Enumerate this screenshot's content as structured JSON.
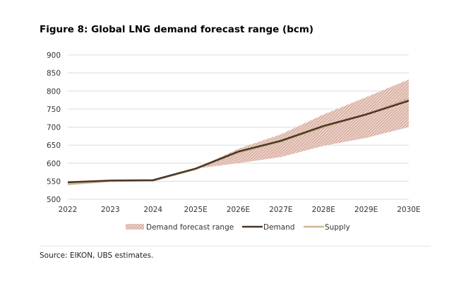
{
  "chart_data": {
    "type": "line",
    "title": "Figure 8: Global LNG demand forecast range (bcm)",
    "categories": [
      "2022",
      "2023",
      "2024",
      "2025E",
      "2026E",
      "2027E",
      "2028E",
      "2029E",
      "2030E"
    ],
    "ylim": [
      500,
      900
    ],
    "yticks": [
      500,
      550,
      600,
      650,
      700,
      750,
      800,
      850,
      900
    ],
    "grid": true,
    "legend_placement": "bottom",
    "range": {
      "name": "Demand forecast range",
      "lower": [
        547,
        552,
        553,
        585,
        600,
        617,
        648,
        670,
        700
      ],
      "upper": [
        547,
        552,
        553,
        585,
        640,
        680,
        735,
        783,
        832
      ],
      "color": "#d8a898"
    },
    "series": [
      {
        "name": "Demand",
        "values": [
          547,
          552,
          553,
          585,
          632,
          662,
          703,
          735,
          773
        ],
        "color": "#4a3626"
      },
      {
        "name": "Supply",
        "values": [
          542,
          551,
          552,
          584,
          630,
          660,
          700,
          735,
          778
        ],
        "color": "#cdb893"
      }
    ]
  },
  "source": "Source: EIKON, UBS estimates."
}
